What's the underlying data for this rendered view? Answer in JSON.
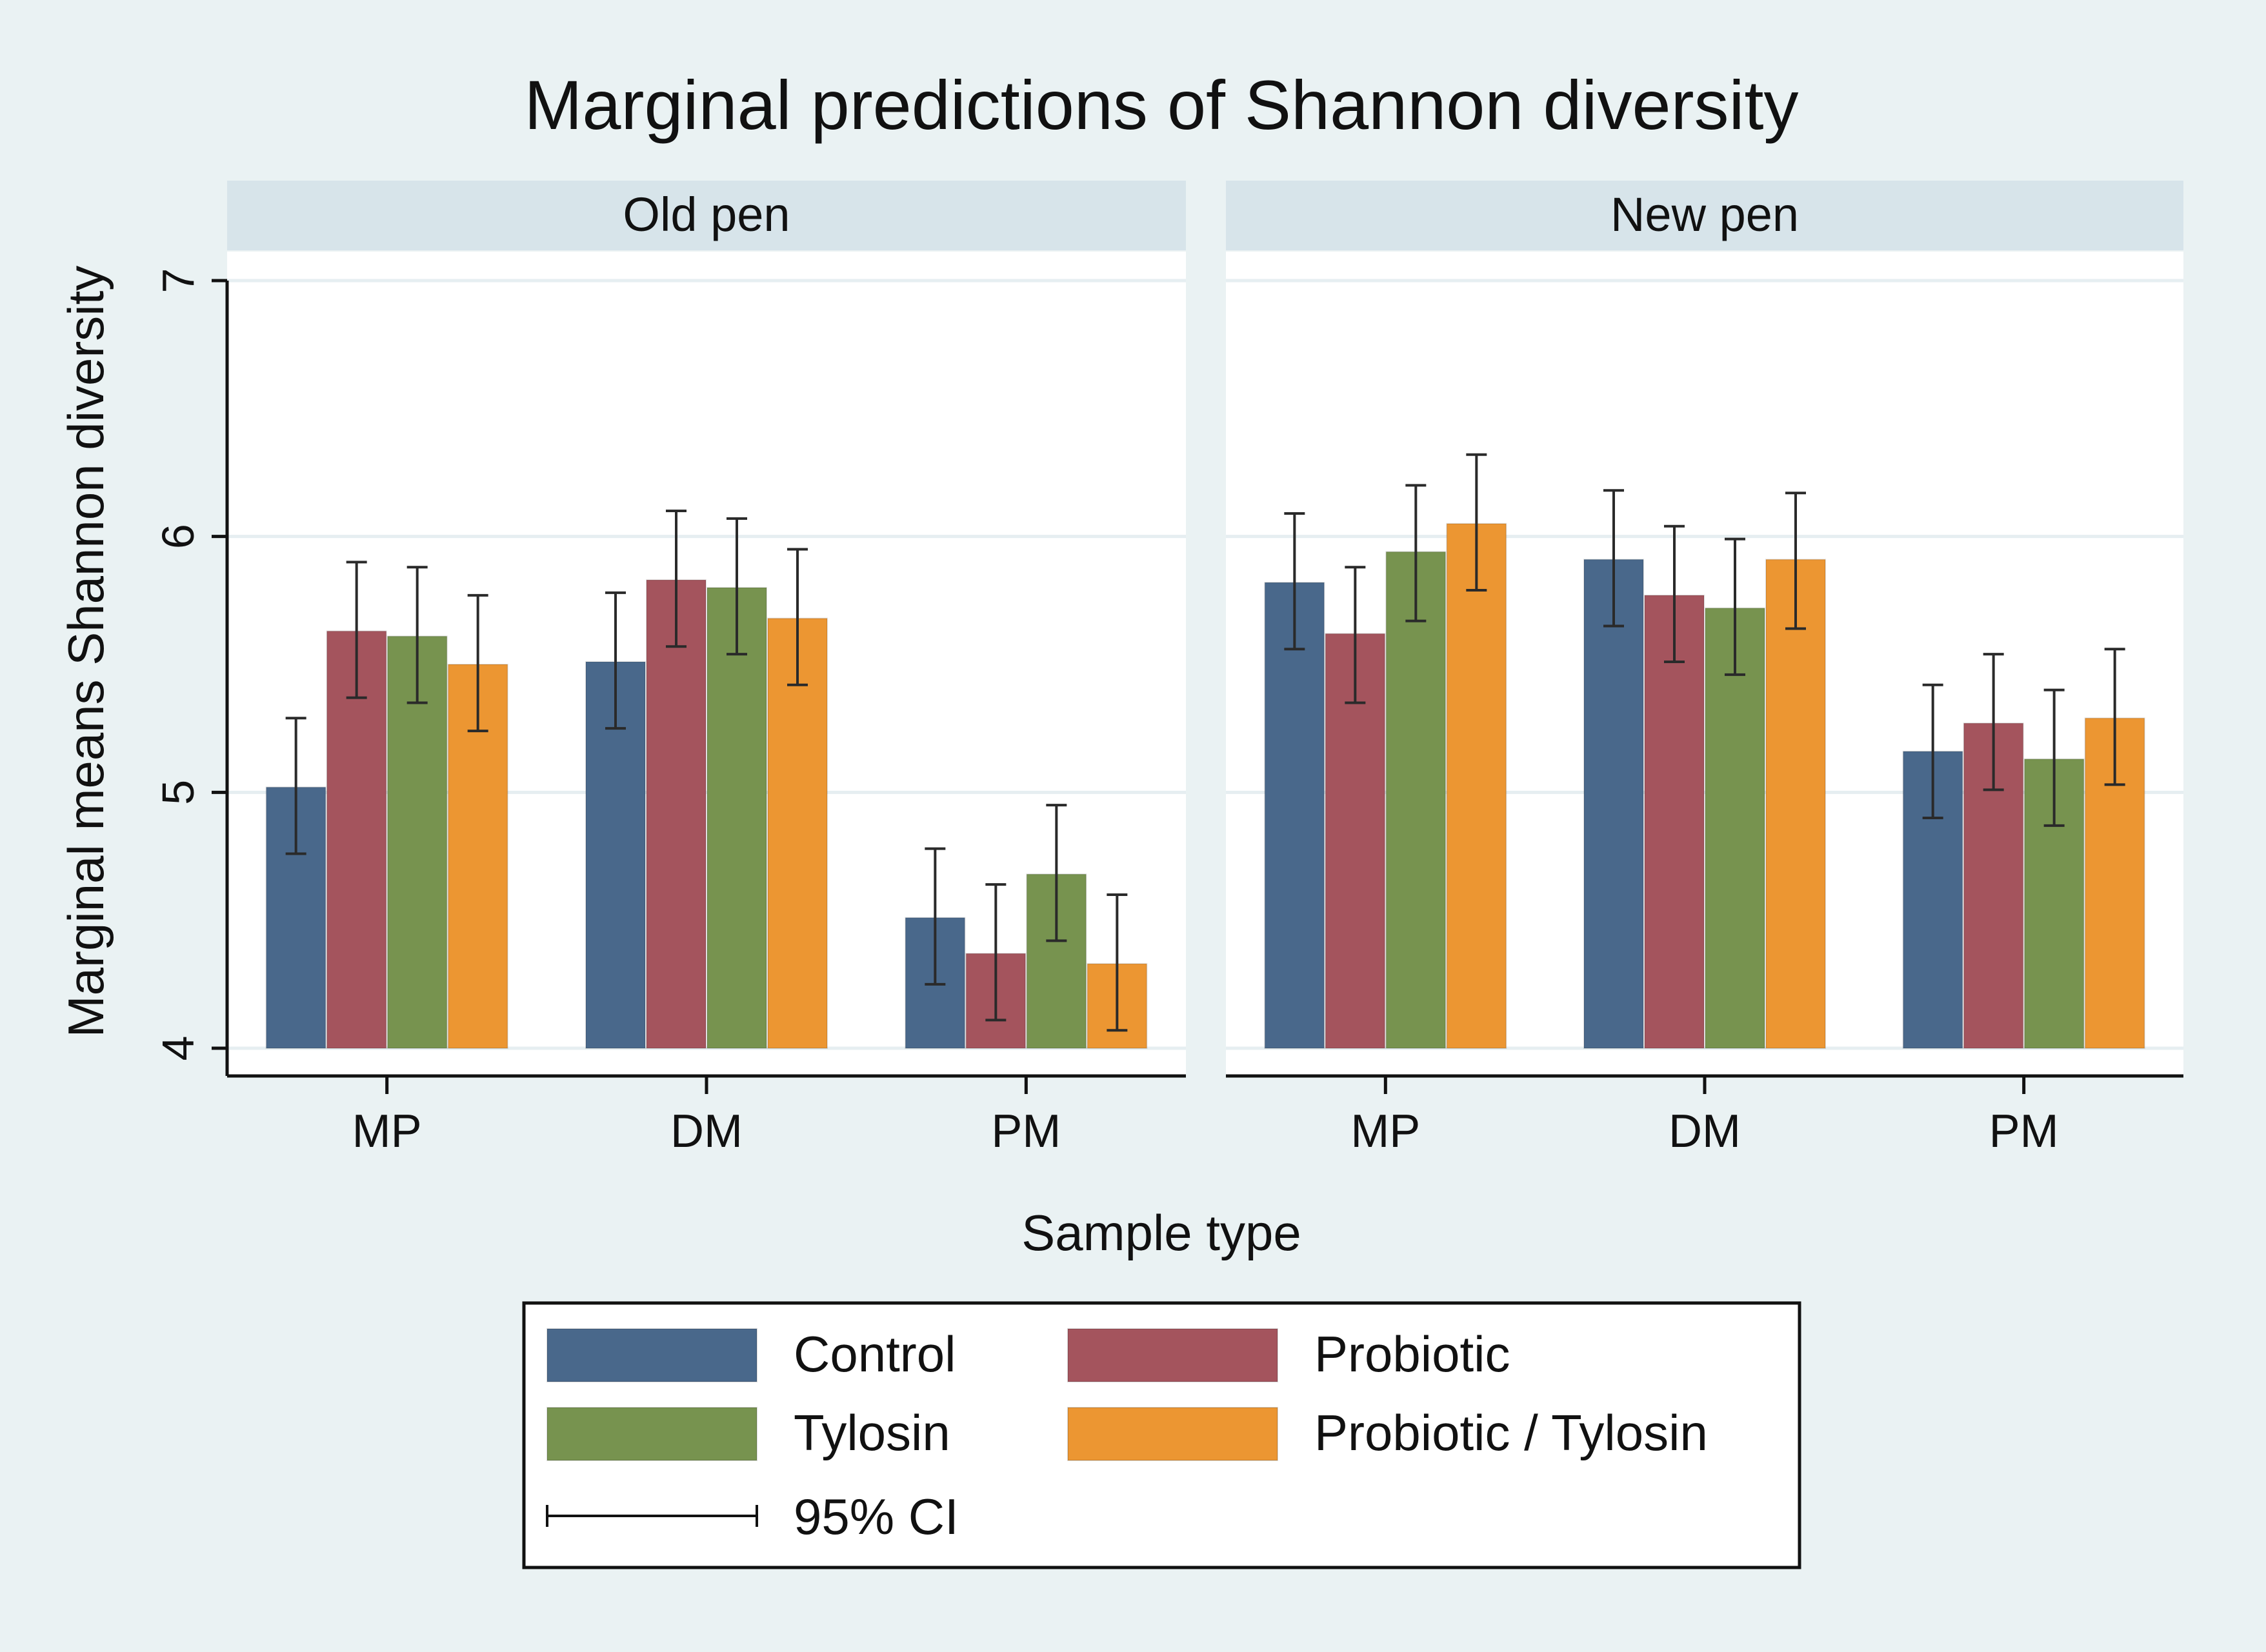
{
  "chart_data": {
    "type": "bar",
    "title": "Marginal predictions of Shannon diversity",
    "xlabel": "Sample type",
    "ylabel": "Marginal means Shannon diversity",
    "ylim": [
      4,
      7
    ],
    "yticks": [
      4,
      5,
      6,
      7
    ],
    "grid": true,
    "legend_position": "bottom",
    "categories": [
      "MP",
      "DM",
      "PM"
    ],
    "series": [
      {
        "name": "Control",
        "color": "#49688b"
      },
      {
        "name": "Probiotic",
        "color": "#a4545d"
      },
      {
        "name": "Tylosin",
        "color": "#77934f"
      },
      {
        "name": "Probiotic / Tylosin",
        "color": "#ec9632"
      }
    ],
    "ci_label": "95% CI",
    "panels": [
      {
        "label": "Old pen",
        "values": [
          [
            5.02,
            5.63,
            5.61,
            5.5
          ],
          [
            5.51,
            5.83,
            5.8,
            5.68
          ],
          [
            4.51,
            4.37,
            4.68,
            4.33
          ]
        ],
        "ci_low": [
          [
            4.76,
            5.37,
            5.35,
            5.24
          ],
          [
            5.25,
            5.57,
            5.54,
            5.42
          ],
          [
            4.25,
            4.11,
            4.42,
            4.07
          ]
        ],
        "ci_high": [
          [
            5.29,
            5.9,
            5.88,
            5.77
          ],
          [
            5.78,
            6.1,
            6.07,
            5.95
          ],
          [
            4.78,
            4.64,
            4.95,
            4.6
          ]
        ]
      },
      {
        "label": "New pen",
        "values": [
          [
            5.82,
            5.62,
            5.94,
            6.05
          ],
          [
            5.91,
            5.77,
            5.72,
            5.91
          ],
          [
            5.16,
            5.27,
            5.13,
            5.29
          ]
        ],
        "ci_low": [
          [
            5.56,
            5.35,
            5.67,
            5.79
          ],
          [
            5.65,
            5.51,
            5.46,
            5.64
          ],
          [
            4.9,
            5.01,
            4.87,
            5.03
          ]
        ],
        "ci_high": [
          [
            6.09,
            5.88,
            6.2,
            6.32
          ],
          [
            6.18,
            6.04,
            5.99,
            6.17
          ],
          [
            5.42,
            5.54,
            5.4,
            5.56
          ]
        ]
      }
    ]
  }
}
